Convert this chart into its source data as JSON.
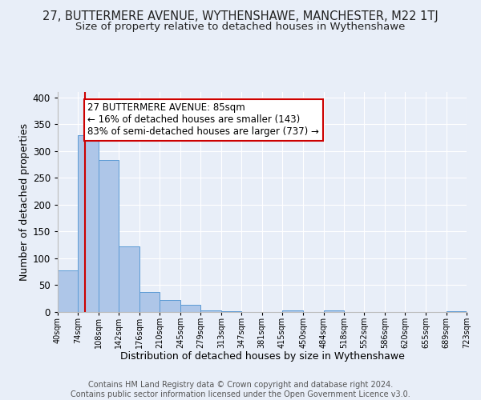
{
  "title": "27, BUTTERMERE AVENUE, WYTHENSHAWE, MANCHESTER, M22 1TJ",
  "subtitle": "Size of property relative to detached houses in Wythenshawe",
  "xlabel": "Distribution of detached houses by size in Wythenshawe",
  "ylabel": "Number of detached properties",
  "bin_edges": [
    40,
    74,
    108,
    142,
    176,
    210,
    245,
    279,
    313,
    347,
    381,
    415,
    450,
    484,
    518,
    552,
    586,
    620,
    655,
    689,
    723
  ],
  "bin_counts": [
    78,
    330,
    283,
    122,
    37,
    23,
    14,
    3,
    1,
    0,
    0,
    3,
    0,
    3,
    0,
    0,
    0,
    0,
    0,
    2
  ],
  "bar_color": "#aec6e8",
  "bar_edge_color": "#5b9bd5",
  "property_line_x": 85,
  "annotation_text": "27 BUTTERMERE AVENUE: 85sqm\n← 16% of detached houses are smaller (143)\n83% of semi-detached houses are larger (737) →",
  "annotation_box_color": "#ffffff",
  "annotation_box_edgecolor": "#cc0000",
  "annotation_fontsize": 8.5,
  "property_line_color": "#cc0000",
  "ylim": [
    0,
    410
  ],
  "yticks": [
    0,
    50,
    100,
    150,
    200,
    250,
    300,
    350,
    400
  ],
  "xtick_labels": [
    "40sqm",
    "74sqm",
    "108sqm",
    "142sqm",
    "176sqm",
    "210sqm",
    "245sqm",
    "279sqm",
    "313sqm",
    "347sqm",
    "381sqm",
    "415sqm",
    "450sqm",
    "484sqm",
    "518sqm",
    "552sqm",
    "586sqm",
    "620sqm",
    "655sqm",
    "689sqm",
    "723sqm"
  ],
  "background_color": "#e8eef8",
  "fig_background_color": "#e8eef8",
  "title_fontsize": 10.5,
  "subtitle_fontsize": 9.5,
  "footer_text": "Contains HM Land Registry data © Crown copyright and database right 2024.\nContains public sector information licensed under the Open Government Licence v3.0.",
  "footer_fontsize": 7
}
